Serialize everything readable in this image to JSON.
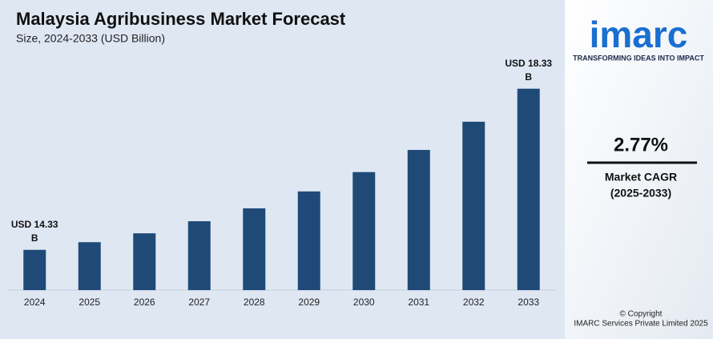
{
  "chart_data": {
    "type": "bar",
    "title": "Malaysia Agribusiness Market Forecast",
    "subtitle": "Size, 2024-2033 (USD Billion)",
    "categories": [
      "2024",
      "2025",
      "2026",
      "2027",
      "2028",
      "2029",
      "2030",
      "2031",
      "2032",
      "2033"
    ],
    "values": [
      14.33,
      14.52,
      14.74,
      15.04,
      15.36,
      15.78,
      16.26,
      16.81,
      17.51,
      18.33
    ],
    "value_labels": [
      "USD 14.33 B",
      null,
      null,
      null,
      null,
      null,
      null,
      null,
      null,
      "USD 18.33 B"
    ],
    "color": "#1f4a78",
    "ylim": [
      13.33,
      19
    ]
  },
  "sidebar": {
    "logo": "imarc",
    "tagline": "TRANSFORMING IDEAS INTO IMPACT",
    "cagr_value": "2.77%",
    "cagr_label": "Market CAGR",
    "cagr_period": "(2025-2033)",
    "copyright": "© Copyright",
    "company": "IMARC Services Private Limited 2025"
  }
}
